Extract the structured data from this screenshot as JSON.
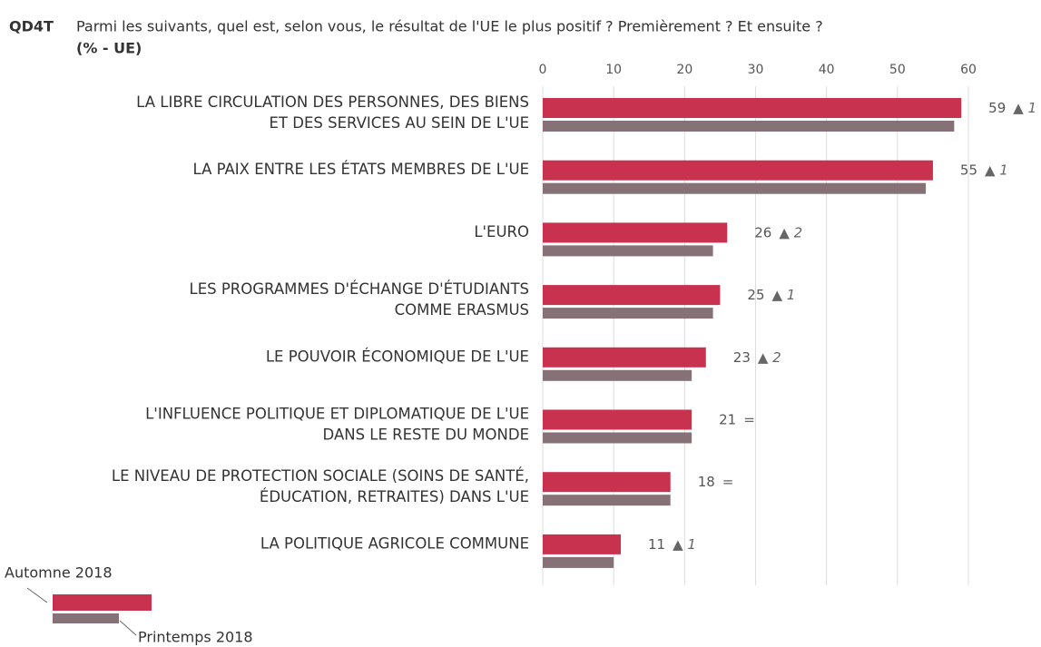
{
  "chart_data": {
    "type": "bar",
    "orientation": "horizontal",
    "code": "QD4T",
    "title": "Parmi les suivants, quel est, selon vous, le résultat de l'UE le plus positif ? Premièrement ? Et ensuite ?",
    "subtitle": "(% - UE)",
    "categories": [
      [
        "LA LIBRE CIRCULATION DES PERSONNES, DES BIENS",
        "ET DES SERVICES AU SEIN DE L'UE"
      ],
      [
        "LA PAIX ENTRE LES ÉTATS MEMBRES DE L'UE"
      ],
      [
        "L'EURO"
      ],
      [
        "LES PROGRAMMES D'ÉCHANGE D'ÉTUDIANTS",
        "COMME ERASMUS"
      ],
      [
        "LE POUVOIR ÉCONOMIQUE DE L'UE"
      ],
      [
        "L'INFLUENCE POLITIQUE ET DIPLOMATIQUE DE L'UE",
        "DANS LE RESTE DU MONDE"
      ],
      [
        "LE NIVEAU DE PROTECTION SOCIALE (SOINS DE SANTÉ,",
        "ÉDUCATION, RETRAITES) DANS L'UE"
      ],
      [
        "LA POLITIQUE AGRICOLE COMMUNE"
      ]
    ],
    "series": [
      {
        "name": "Automne 2018",
        "color": "#c8324f",
        "values": [
          59,
          55,
          26,
          25,
          23,
          21,
          18,
          11
        ],
        "changes": [
          "▲ 1",
          "▲ 1",
          "▲ 2",
          "▲ 1",
          "▲ 2",
          "=",
          "=",
          "▲ 1"
        ]
      },
      {
        "name": "Printemps 2018",
        "color": "#857176",
        "values": [
          58,
          54,
          24,
          24,
          21,
          21,
          18,
          10
        ]
      }
    ],
    "xlim": [
      0,
      60
    ],
    "xticks": [
      0,
      10,
      20,
      30,
      40,
      50,
      60
    ],
    "grid": true
  }
}
